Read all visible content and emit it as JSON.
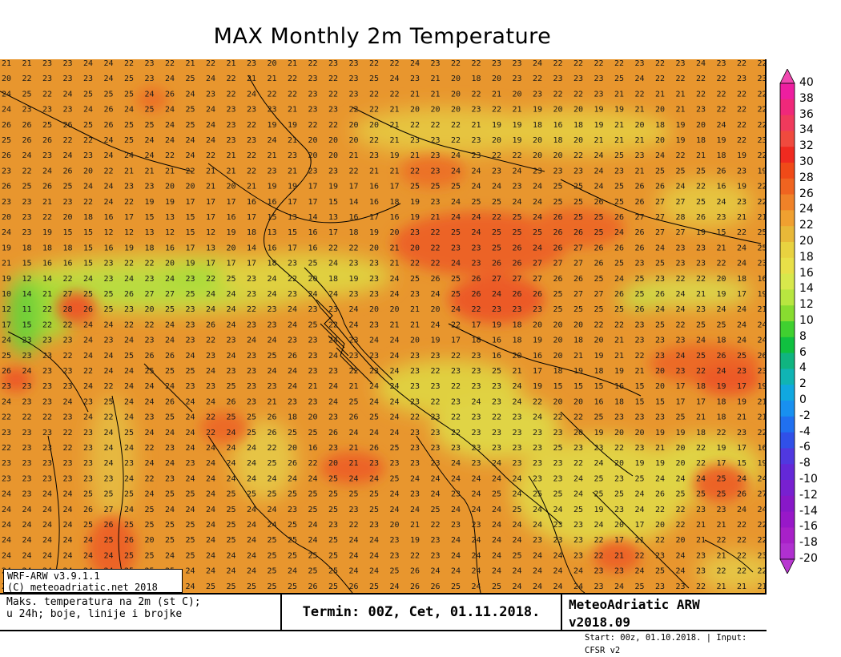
{
  "title": "MAX Monthly 2m Temperature",
  "info": {
    "line1": "WRF-ARW v3.9.1.1",
    "line2": "(C) meteoadriatic.net 2018"
  },
  "footer": {
    "desc_line1": "Maks. temperatura na 2m (st C);",
    "desc_line2": "u 24h; boje, linije i brojke",
    "termin": "Termin: 00Z, Cet, 01.11.2018.",
    "brand": "MeteoAdriatic ARW v2018.09",
    "start": "Start: 00z, 01.10.2018. | Input: CFSR v2"
  },
  "legend": {
    "levels": [
      "40",
      "38",
      "36",
      "34",
      "32",
      "30",
      "28",
      "26",
      "24",
      "22",
      "20",
      "18",
      "16",
      "14",
      "12",
      "10",
      "8",
      "6",
      "4",
      "2",
      "0",
      "-2",
      "-4",
      "-6",
      "-8",
      "-10",
      "-12",
      "-14",
      "-16",
      "-18",
      "-20"
    ],
    "colors": [
      "#ee1ea0",
      "#f0287a",
      "#f03a5c",
      "#f04a3e",
      "#f02a20",
      "#f04a18",
      "#f06420",
      "#f08228",
      "#f0a030",
      "#e8b838",
      "#e8d240",
      "#e8e048",
      "#d8e84c",
      "#b8e640",
      "#88dc30",
      "#40d030",
      "#10c040",
      "#10b480",
      "#10b4b4",
      "#10a8e0",
      "#1890f0",
      "#2070f0",
      "#3050e8",
      "#5038e0",
      "#6428d8",
      "#7820d0",
      "#8818c8",
      "#9818c8",
      "#a820c8",
      "#b030d0"
    ],
    "top_arrow_color": "#f048b0",
    "bottom_arrow_color": "#b838d0"
  },
  "map_grid": {
    "rows": [
      "21 21 23 23 24 24 22 23 22 21 22 21 23 20 21 22 23 23 22 22 24 23 22 22 23 23 24 22 22 22 22 23 22 23 24 23 22 22",
      "20 22 23 23 23 24 25 23 24 25 24 22 21 21 22 23 22 23 25 24 23 21 20 18 20 23 22 23 23 23 25 24 22 22 22 22 23 23",
      "24 25 22 24 25 25 25 24 26 24 23 22 24 22 22 23 22 23 22 22 21 21 20 22 21 20 23 22 22 23 21 22 21 21 22 22 22 22",
      "24 23 23 23 24 26 24 25 24 25 24 23 23 23 21 23 23 22 22 21 20 20 20 23 22 21 19 20 20 19 19 21 20 21 23 22 22 22",
      "26 26 25 26 25 26 25 25 24 25 24 23 22 19 19 22 22 20 20 21 22 22 22 21 19 19 18 16 18 19 21 20 18 19 20 24 22 22",
      "25 26 26 22 22 24 25 24 24 24 24 23 23 24 21 20 20 20 22 21 23 23 22 23 20 19 20 18 20 21 21 21 20 19 18 19 22 23",
      "26 24 23 24 23 24 24 24 22 24 22 21 22 21 23 20 20 21 23 19 21 23 24 23 22 22 20 20 22 24 25 23 24 22 21 18 19 22",
      "23 22 24 26 20 22 21 21 21 22 21 21 22 23 21 23 23 22 21 21 22 23 24 24 23 24 23 23 23 24 23 21 25 25 25 26 23 19",
      "26 25 26 25 24 24 23 23 20 20 21 20 21 19 19 17 19 17 16 17 25 25 25 24 24 23 24 25 25 24 25 26 26 24 22 16 19 22",
      "23 23 21 23 22 24 22 19 19 17 17 17 16 16 17 17 15 14 16 18 19 23 24 25 25 24 24 25 25 26 25 26 27 27 25 24 23 22",
      "20 23 22 20 18 16 17 15 13 15 17 16 17 15 13 14 13 16 17 16 19 21 24 24 22 25 24 26 25 25 26 27 27 28 26 23 21 21",
      "24 23 19 15 15 12 12 13 12 15 12 19 18 13 15 16 17 18 19 20 23 22 25 24 25 25 25 26 26 25 24 26 27 27 19 15 22 25",
      "19 18 18 18 15 16 19 18 16 17 13 20 14 16 17 16 22 22 20 21 20 22 23 23 25 26 24 26 27 26 26 26 24 23 23 21 24 25",
      "21 15 16 16 15 23 22 22 20 19 17 17 17 18 23 25 24 23 23 21 22 22 24 23 26 26 27 27 27 26 25 23 25 23 23 22 24 23",
      "19 12 14 22 24 23 24 23 24 23 22 25 23 24 22 20 18 19 23 24 25 26 25 26 27 27 27 26 26 25 24 25 23 22 22 20 18 16",
      "10 14 21 27 25 25 26 27 27 25 24 24 23 24 23 24 24 23 23 24 23 24 25 26 24 26 26 25 27 27 26 25 26 24 21 19 17 19",
      "12 11 22 28 26 25 23 20 25 23 24 24 22 23 24 23 23 24 20 20 21 20 24 22 23 23 23 25 25 25 25 26 24 24 23 24 24 21",
      "17 15 22 22 24 24 22 22 24 23 26 24 23 23 24 25 22 24 23 21 21 24 22 17 19 18 20 20 20 22 22 23 25 22 25 25 24 24",
      "24 23 23 23 24 23 24 23 24 23 22 23 24 24 23 23 24 23 24 24 20 19 17 18 16 18 19 20 18 20 21 23 23 23 24 18 24 24",
      "25 23 23 22 24 24 25 26 26 24 23 24 23 25 26 23 24 23 23 24 23 23 22 23 16 20 16 20 21 19 21 22 23 24 25 26 25 26",
      "26 24 23 23 22 24 24 25 25 25 24 23 23 24 24 23 23 22 23 24 23 22 23 23 25 21 17 18 19 18 19 21 20 23 22 24 23 23",
      "23 23 23 23 24 22 24 24 24 23 23 25 23 23 24 21 24 21 24 24 23 23 22 23 23 24 19 15 15 15 16 15 20 17 18 19 17 19",
      "24 23 23 24 23 25 24 24 26 24 24 26 23 21 23 23 24 25 24 24 23 22 23 24 23 24 22 20 20 16 18 15 15 17 17 18 19 21",
      "22 22 22 23 24 22 24 23 25 24 22 25 25 26 18 20 23 26 25 24 22 23 22 23 22 23 24 22 22 25 23 23 23 25 21 18 21 21",
      "23 23 23 22 23 24 25 24 24 24 22 24 25 26 25 25 26 24 24 24 23 23 22 23 23 23 23 23 20 19 20 20 19 19 18 22 23 22",
      "22 23 23 22 23 24 24 22 23 24 24 24 24 22 20 16 23 21 26 25 23 23 23 23 23 23 23 25 23 23 22 23 21 20 22 19 17 16",
      "23 23 23 23 23 24 23 24 24 23 24 24 24 25 26 22 20 21 23 23 23 23 24 23 24 23 23 23 22 24 20 19 19 20 22 17 15 19",
      "23 23 23 23 23 23 24 22 23 24 24 24 24 24 24 24 25 24 24 25 24 24 24 24 24 24 23 23 24 25 23 25 24 24 24 25 24 24",
      "24 23 24 24 25 25 25 24 25 25 24 25 25 25 25 25 25 25 25 24 23 24 23 24 25 24 25 25 24 25 25 24 26 25 25 25 26 27",
      "24 24 24 24 26 27 24 25 24 24 24 25 24 24 23 25 25 23 25 24 24 25 24 24 24 25 24 24 25 19 23 24 22 22 23 23 24 24",
      "24 24 24 24 25 26 25 25 25 25 24 25 24 24 25 24 23 22 23 20 21 22 23 23 24 24 24 23 23 24 20 17 20 22 21 21 22 22",
      "24 24 24 24 24 25 26 20 25 25 24 25 24 25 25 24 25 24 24 23 19 23 24 24 24 24 23 23 23 22 17 21 22 20 21 22 22 22",
      "24 24 24 24 24 24 25 25 24 25 24 24 24 25 25 25 25 24 24 23 22 23 24 24 24 25 24 24 23 22 21 22 23 24 23 21 22 23",
      "24 24 24 24 24 24 25 25 25 24 24 24 24 25 24 25 25 24 24 25 26 24 24 24 24 24 24 24 24 23 23 24 25 24 23 22 22 22",
      "24 24 24 24 25 24 25 25 25 24 25 25 25 25 25 26 25 26 25 24 26 26 25 24 25 24 24 24 24 23 24 25 23 23 22 21 21 21"
    ]
  }
}
